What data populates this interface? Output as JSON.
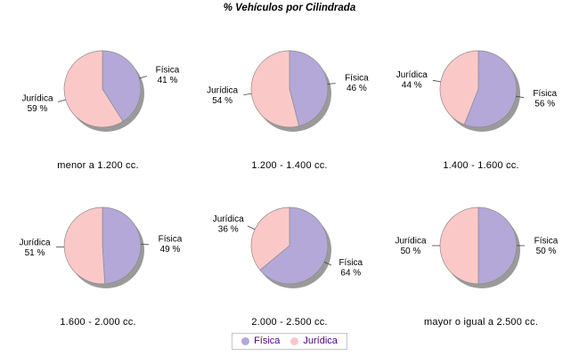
{
  "title": "% Vehículos por Cilindrada",
  "unit": "%",
  "colors": {
    "fisica": "#b3a8d7",
    "juridica": "#fbc8c8",
    "shadow": "#9a9a9a",
    "slice_outline": "#8c8c8c",
    "legend_text": "#4b0082",
    "legend_border": "#c6c2d2"
  },
  "legend": {
    "items": [
      {
        "label": "Física",
        "color": "#b3a8d7"
      },
      {
        "label": "Jurídica",
        "color": "#fbc8c8"
      }
    ]
  },
  "chart_data": {
    "type": "pie",
    "title": "% Vehículos por Cilindrada",
    "layout": "2 rows x 3 columns of small pies, shared legend bottom center",
    "legend_position": "bottom-center",
    "unit": "%",
    "categories": [
      "menor a 1.200 cc.",
      "1.200 - 1.400 cc.",
      "1.400 - 1.600 cc.",
      "1.600 - 2.000 cc.",
      "2.000 - 2.500 cc.",
      "mayor o igual a 2.500 cc."
    ],
    "series": [
      {
        "name": "Física",
        "color": "#b3a8d7",
        "values": [
          41,
          46,
          56,
          49,
          64,
          50
        ]
      },
      {
        "name": "Jurídica",
        "color": "#fbc8c8",
        "values": [
          59,
          54,
          44,
          51,
          36,
          50
        ]
      }
    ]
  }
}
